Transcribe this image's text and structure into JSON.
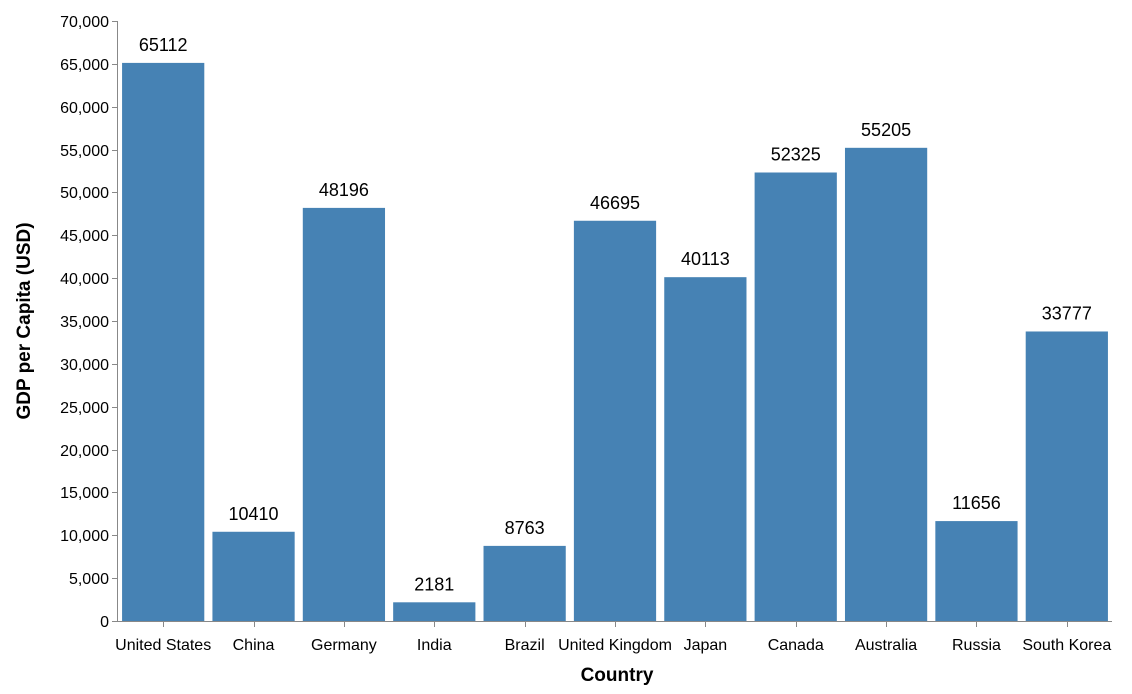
{
  "chart_data": {
    "type": "bar",
    "categories": [
      "United States",
      "China",
      "Germany",
      "India",
      "Brazil",
      "United Kingdom",
      "Japan",
      "Canada",
      "Australia",
      "Russia",
      "South Korea"
    ],
    "values": [
      65112,
      10410,
      48196,
      2181,
      8763,
      46695,
      40113,
      52325,
      55205,
      11656,
      33777
    ],
    "data_labels": [
      "65112",
      "10410",
      "48196",
      "2181",
      "8763",
      "46695",
      "40113",
      "52325",
      "55205",
      "11656",
      "33777"
    ],
    "xlabel": "Country",
    "ylabel": "GDP per Capita (USD)",
    "ylim": [
      0,
      70000
    ],
    "y_ticks": [
      0,
      5000,
      10000,
      15000,
      20000,
      25000,
      30000,
      35000,
      40000,
      45000,
      50000,
      55000,
      60000,
      65000,
      70000
    ],
    "y_tick_labels": [
      "0",
      "5,000",
      "10,000",
      "15,000",
      "20,000",
      "25,000",
      "30,000",
      "35,000",
      "40,000",
      "45,000",
      "50,000",
      "55,000",
      "60,000",
      "65,000",
      "70,000"
    ],
    "grid": false,
    "legend": "none",
    "bar_color": "#4682b4"
  }
}
